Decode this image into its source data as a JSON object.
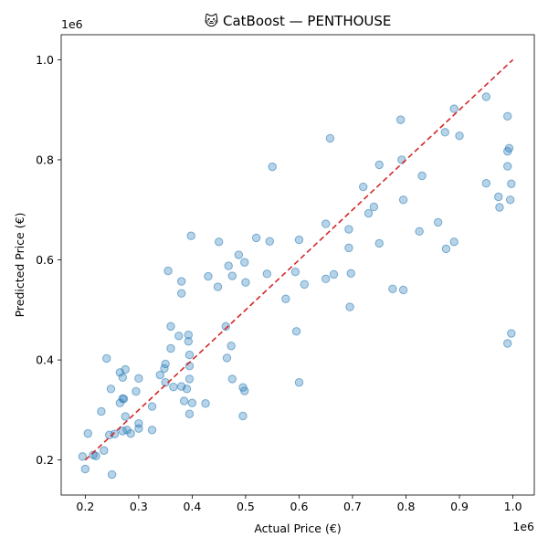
{
  "chart_data": {
    "type": "scatter",
    "title": "🐱 CatBoost — PENTHOUSE",
    "xlabel": "Actual Price (€)",
    "ylabel": "Predicted Price (€)",
    "x_offset_label": "1e6",
    "y_offset_label": "1e6",
    "xlim": [
      0.155,
      1.04
    ],
    "ylim": [
      0.13,
      1.05
    ],
    "x_ticks": [
      0.2,
      0.3,
      0.4,
      0.5,
      0.6,
      0.7,
      0.8,
      0.9,
      1.0
    ],
    "y_ticks": [
      0.2,
      0.4,
      0.6,
      0.8,
      1.0
    ],
    "x_tick_labels": [
      "0.2",
      "0.3",
      "0.4",
      "0.5",
      "0.6",
      "0.7",
      "0.8",
      "0.9",
      "1.0"
    ],
    "y_tick_labels": [
      "0.2",
      "0.4",
      "0.6",
      "0.8",
      "1.0"
    ],
    "grid": false,
    "point_color": "#1f77b4",
    "reference_line": {
      "x": [
        0.2,
        1.0
      ],
      "y": [
        0.2,
        1.0
      ],
      "color": "#d62728",
      "style": "dashed"
    },
    "points": [
      [
        0.195,
        0.207
      ],
      [
        0.2,
        0.182
      ],
      [
        0.205,
        0.253
      ],
      [
        0.215,
        0.21
      ],
      [
        0.22,
        0.208
      ],
      [
        0.23,
        0.297
      ],
      [
        0.235,
        0.219
      ],
      [
        0.24,
        0.403
      ],
      [
        0.245,
        0.25
      ],
      [
        0.248,
        0.342
      ],
      [
        0.25,
        0.171
      ],
      [
        0.255,
        0.252
      ],
      [
        0.265,
        0.314
      ],
      [
        0.265,
        0.375
      ],
      [
        0.27,
        0.323
      ],
      [
        0.27,
        0.258
      ],
      [
        0.27,
        0.365
      ],
      [
        0.272,
        0.322
      ],
      [
        0.275,
        0.287
      ],
      [
        0.275,
        0.381
      ],
      [
        0.278,
        0.26
      ],
      [
        0.285,
        0.253
      ],
      [
        0.295,
        0.337
      ],
      [
        0.3,
        0.263
      ],
      [
        0.3,
        0.273
      ],
      [
        0.3,
        0.363
      ],
      [
        0.325,
        0.307
      ],
      [
        0.325,
        0.26
      ],
      [
        0.34,
        0.37
      ],
      [
        0.348,
        0.383
      ],
      [
        0.35,
        0.392
      ],
      [
        0.35,
        0.355
      ],
      [
        0.355,
        0.578
      ],
      [
        0.36,
        0.467
      ],
      [
        0.36,
        0.423
      ],
      [
        0.365,
        0.346
      ],
      [
        0.375,
        0.448
      ],
      [
        0.38,
        0.347
      ],
      [
        0.38,
        0.557
      ],
      [
        0.38,
        0.533
      ],
      [
        0.385,
        0.318
      ],
      [
        0.39,
        0.342
      ],
      [
        0.393,
        0.45
      ],
      [
        0.393,
        0.437
      ],
      [
        0.395,
        0.41
      ],
      [
        0.395,
        0.388
      ],
      [
        0.395,
        0.362
      ],
      [
        0.395,
        0.292
      ],
      [
        0.398,
        0.648
      ],
      [
        0.4,
        0.314
      ],
      [
        0.425,
        0.313
      ],
      [
        0.43,
        0.567
      ],
      [
        0.448,
        0.546
      ],
      [
        0.45,
        0.636
      ],
      [
        0.463,
        0.467
      ],
      [
        0.465,
        0.404
      ],
      [
        0.468,
        0.588
      ],
      [
        0.473,
        0.428
      ],
      [
        0.475,
        0.568
      ],
      [
        0.475,
        0.362
      ],
      [
        0.487,
        0.61
      ],
      [
        0.495,
        0.345
      ],
      [
        0.495,
        0.288
      ],
      [
        0.498,
        0.338
      ],
      [
        0.498,
        0.595
      ],
      [
        0.5,
        0.555
      ],
      [
        0.52,
        0.644
      ],
      [
        0.54,
        0.572
      ],
      [
        0.545,
        0.637
      ],
      [
        0.55,
        0.786
      ],
      [
        0.575,
        0.522
      ],
      [
        0.593,
        0.576
      ],
      [
        0.595,
        0.457
      ],
      [
        0.6,
        0.355
      ],
      [
        0.6,
        0.64
      ],
      [
        0.61,
        0.551
      ],
      [
        0.65,
        0.672
      ],
      [
        0.65,
        0.562
      ],
      [
        0.658,
        0.843
      ],
      [
        0.665,
        0.571
      ],
      [
        0.693,
        0.661
      ],
      [
        0.693,
        0.624
      ],
      [
        0.695,
        0.506
      ],
      [
        0.697,
        0.573
      ],
      [
        0.72,
        0.746
      ],
      [
        0.73,
        0.693
      ],
      [
        0.74,
        0.706
      ],
      [
        0.75,
        0.79
      ],
      [
        0.75,
        0.633
      ],
      [
        0.775,
        0.542
      ],
      [
        0.79,
        0.88
      ],
      [
        0.792,
        0.8
      ],
      [
        0.795,
        0.72
      ],
      [
        0.795,
        0.54
      ],
      [
        0.825,
        0.657
      ],
      [
        0.83,
        0.768
      ],
      [
        0.86,
        0.675
      ],
      [
        0.873,
        0.855
      ],
      [
        0.875,
        0.622
      ],
      [
        0.89,
        0.636
      ],
      [
        0.89,
        0.902
      ],
      [
        0.9,
        0.848
      ],
      [
        0.95,
        0.926
      ],
      [
        0.95,
        0.753
      ],
      [
        0.973,
        0.726
      ],
      [
        0.975,
        0.705
      ],
      [
        0.99,
        0.887
      ],
      [
        0.99,
        0.787
      ],
      [
        0.99,
        0.817
      ],
      [
        0.99,
        0.433
      ],
      [
        0.993,
        0.823
      ],
      [
        0.995,
        0.72
      ],
      [
        0.997,
        0.752
      ],
      [
        0.997,
        0.453
      ]
    ]
  }
}
